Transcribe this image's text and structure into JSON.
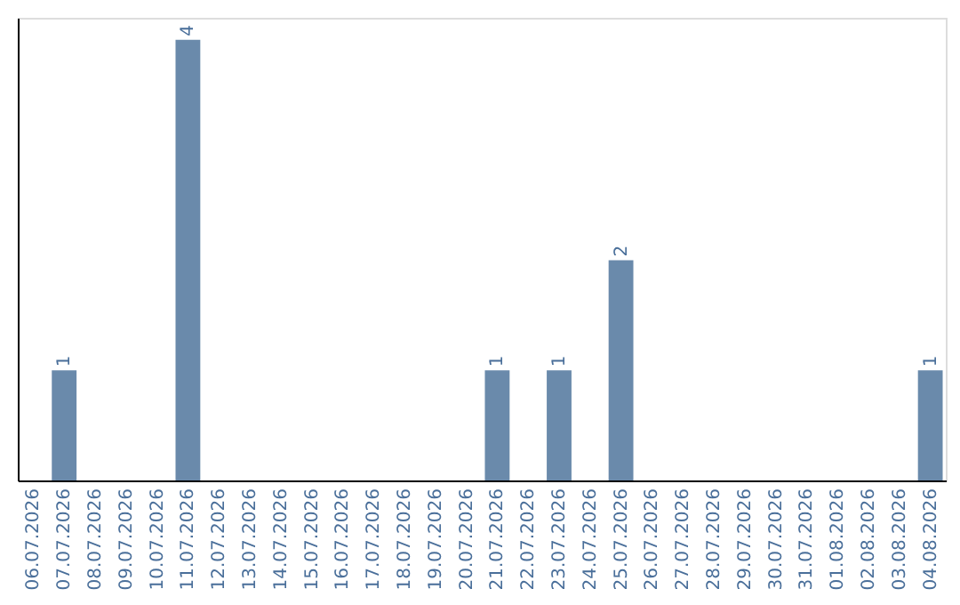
{
  "chart_data": {
    "type": "bar",
    "categories": [
      "06.07.2026",
      "07.07.2026",
      "08.07.2026",
      "09.07.2026",
      "10.07.2026",
      "11.07.2026",
      "12.07.2026",
      "13.07.2026",
      "14.07.2026",
      "15.07.2026",
      "16.07.2026",
      "17.07.2026",
      "18.07.2026",
      "19.07.2026",
      "20.07.2026",
      "21.07.2026",
      "22.07.2026",
      "23.07.2026",
      "24.07.2026",
      "25.07.2026",
      "26.07.2026",
      "27.07.2026",
      "28.07.2026",
      "29.07.2026",
      "30.07.2026",
      "31.07.2026",
      "01.08.2026",
      "02.08.2026",
      "03.08.2026",
      "04.08.2026"
    ],
    "values": [
      0,
      1,
      0,
      0,
      0,
      4,
      0,
      0,
      0,
      0,
      0,
      0,
      0,
      0,
      0,
      1,
      0,
      1,
      0,
      2,
      0,
      0,
      0,
      0,
      0,
      0,
      0,
      0,
      0,
      1
    ],
    "value_labels": [
      null,
      "1",
      null,
      null,
      null,
      "4",
      null,
      null,
      null,
      null,
      null,
      null,
      null,
      null,
      null,
      "1",
      null,
      "1",
      null,
      "2",
      null,
      null,
      null,
      null,
      null,
      null,
      null,
      null,
      null,
      "1"
    ],
    "color": "#6a8aab",
    "ylim": [
      0,
      4.2
    ],
    "tick_labels": "x",
    "grid": false
  }
}
